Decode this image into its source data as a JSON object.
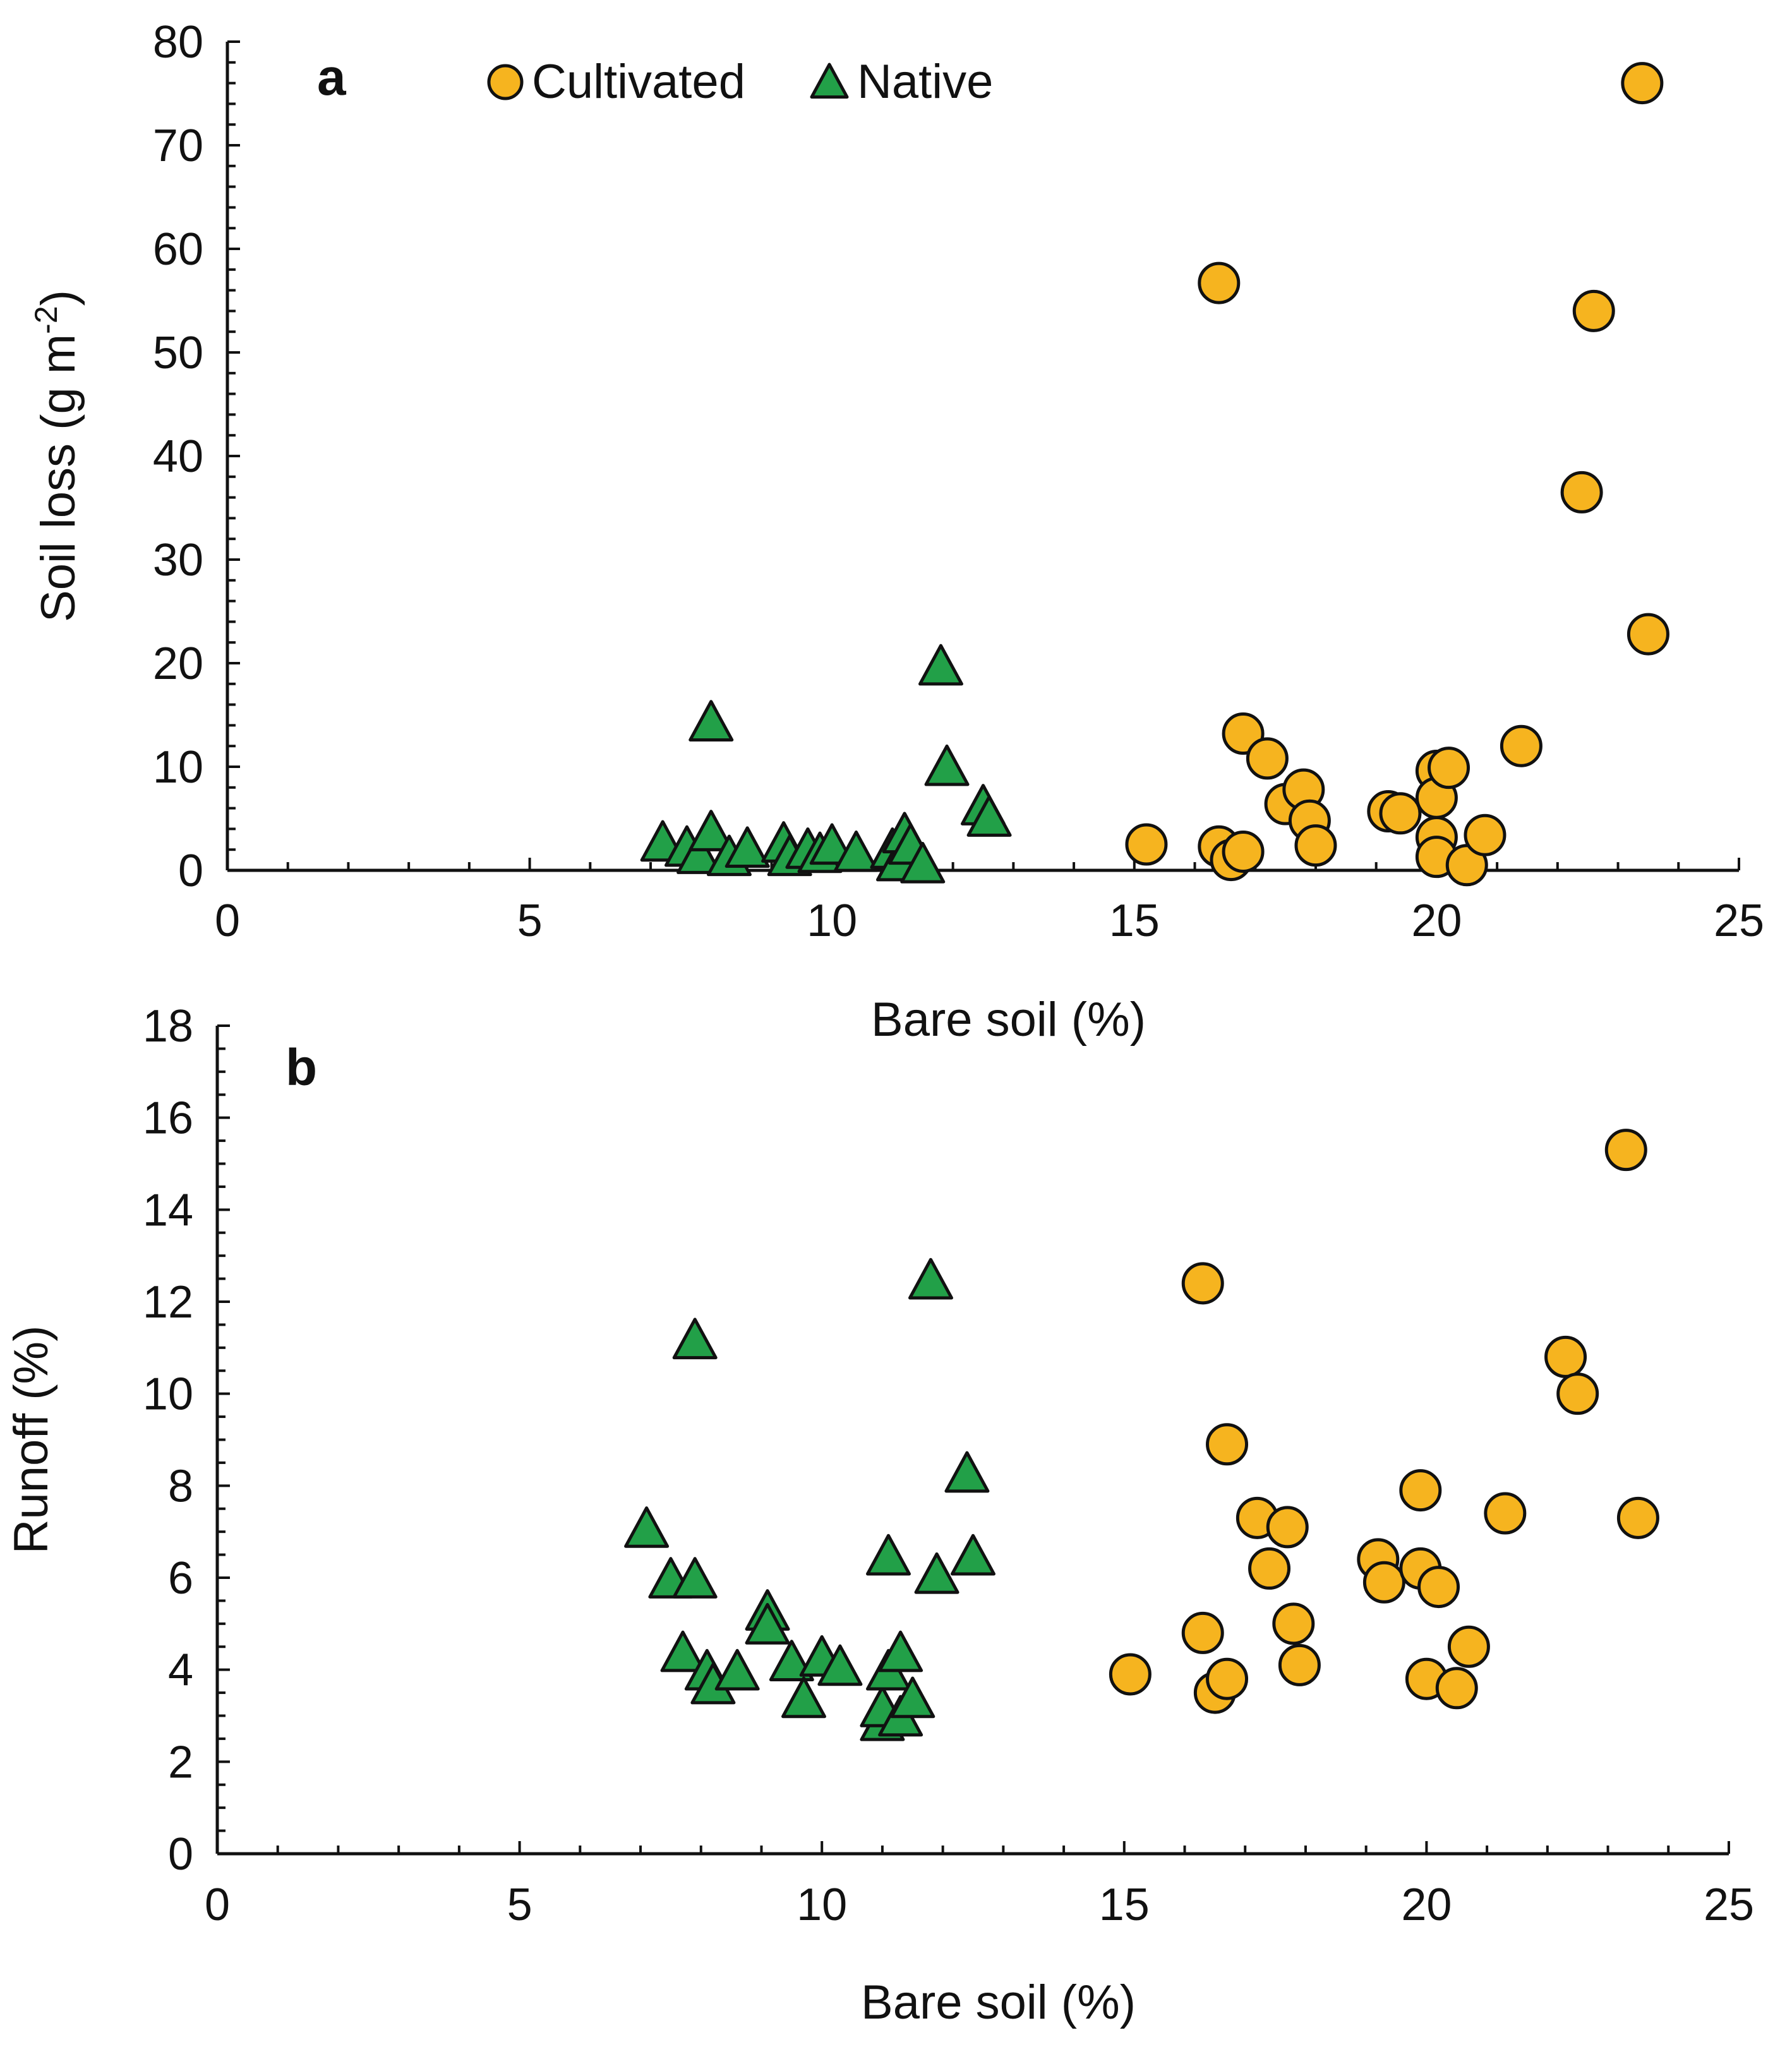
{
  "colors": {
    "cultivated": "#F6B41F",
    "native": "#22A048",
    "outline": "#111111"
  },
  "legend": {
    "cultivated": "Cultivated",
    "native": "Native",
    "placement": "top-left"
  },
  "chart_data": [
    {
      "type": "scatter",
      "panel_label": "a",
      "title": "",
      "xlabel": "Bare soil (%)",
      "ylabel_main": "Soil loss (g m",
      "ylabel_sup": "-2",
      "ylabel_tail": ")",
      "xlim": [
        0,
        25
      ],
      "ylim": [
        0,
        80
      ],
      "xticks": [
        "0",
        "5",
        "10",
        "15",
        "20",
        "25"
      ],
      "yticks": [
        "0",
        "10",
        "20",
        "30",
        "40",
        "50",
        "60",
        "70",
        "80"
      ],
      "x_minor_step": 1,
      "y_minor_step": 2,
      "series": [
        {
          "name": "Cultivated",
          "marker": "circle",
          "points": [
            [
              15.2,
              2.5
            ],
            [
              16.4,
              56.7
            ],
            [
              16.4,
              2.3
            ],
            [
              16.6,
              1.0
            ],
            [
              16.8,
              13.2
            ],
            [
              16.8,
              1.8
            ],
            [
              17.2,
              10.8
            ],
            [
              17.5,
              6.4
            ],
            [
              17.8,
              7.8
            ],
            [
              17.9,
              4.8
            ],
            [
              18.0,
              2.4
            ],
            [
              19.2,
              5.7
            ],
            [
              19.4,
              5.5
            ],
            [
              20.0,
              9.6
            ],
            [
              20.0,
              7.0
            ],
            [
              20.0,
              3.2
            ],
            [
              20.0,
              1.3
            ],
            [
              20.2,
              9.9
            ],
            [
              20.5,
              0.5
            ],
            [
              20.8,
              3.4
            ],
            [
              21.4,
              12.0
            ],
            [
              22.4,
              36.5
            ],
            [
              22.6,
              54.0
            ],
            [
              23.4,
              76.0
            ],
            [
              23.5,
              22.8
            ]
          ]
        },
        {
          "name": "Native",
          "marker": "triangle",
          "points": [
            [
              7.2,
              2.4
            ],
            [
              7.6,
              1.9
            ],
            [
              7.8,
              1.2
            ],
            [
              8.0,
              14.0
            ],
            [
              8.0,
              3.4
            ],
            [
              8.3,
              1.0
            ],
            [
              8.6,
              1.8
            ],
            [
              9.2,
              2.3
            ],
            [
              9.3,
              1.0
            ],
            [
              9.6,
              1.7
            ],
            [
              9.8,
              1.3
            ],
            [
              10.0,
              2.1
            ],
            [
              10.4,
              1.4
            ],
            [
              11.0,
              1.7
            ],
            [
              11.1,
              0.5
            ],
            [
              11.2,
              3.2
            ],
            [
              11.3,
              2.1
            ],
            [
              11.5,
              0.3
            ],
            [
              11.8,
              19.4
            ],
            [
              11.9,
              9.7
            ],
            [
              12.5,
              5.9
            ],
            [
              12.6,
              4.8
            ]
          ]
        }
      ]
    },
    {
      "type": "scatter",
      "panel_label": "b",
      "title": "",
      "xlabel": "Bare soil (%)",
      "ylabel": "Runoff (%)",
      "xlim": [
        0,
        25
      ],
      "ylim": [
        0,
        18
      ],
      "xticks": [
        "0",
        "5",
        "10",
        "15",
        "20",
        "25"
      ],
      "yticks": [
        "0",
        "2",
        "4",
        "6",
        "8",
        "10",
        "12",
        "14",
        "16",
        "18"
      ],
      "x_minor_step": 1,
      "y_minor_step": 0.5,
      "series": [
        {
          "name": "Cultivated",
          "marker": "circle",
          "points": [
            [
              15.1,
              3.9
            ],
            [
              16.3,
              12.4
            ],
            [
              16.3,
              4.8
            ],
            [
              16.5,
              3.5
            ],
            [
              16.7,
              8.9
            ],
            [
              16.7,
              3.8
            ],
            [
              17.2,
              7.3
            ],
            [
              17.4,
              6.2
            ],
            [
              17.7,
              7.1
            ],
            [
              17.8,
              5.0
            ],
            [
              17.9,
              4.1
            ],
            [
              19.2,
              6.4
            ],
            [
              19.3,
              5.9
            ],
            [
              19.9,
              7.9
            ],
            [
              19.9,
              6.2
            ],
            [
              20.0,
              3.8
            ],
            [
              20.2,
              5.8
            ],
            [
              20.5,
              3.6
            ],
            [
              20.7,
              4.5
            ],
            [
              21.3,
              7.4
            ],
            [
              22.3,
              10.8
            ],
            [
              22.5,
              10.0
            ],
            [
              23.3,
              15.3
            ],
            [
              23.5,
              7.3
            ]
          ]
        },
        {
          "name": "Native",
          "marker": "triangle",
          "points": [
            [
              7.1,
              7.0
            ],
            [
              7.5,
              5.9
            ],
            [
              7.7,
              4.3
            ],
            [
              7.9,
              11.1
            ],
            [
              7.9,
              5.9
            ],
            [
              8.1,
              3.9
            ],
            [
              8.2,
              3.6
            ],
            [
              8.6,
              3.9
            ],
            [
              9.1,
              5.2
            ],
            [
              9.1,
              4.9
            ],
            [
              9.5,
              4.1
            ],
            [
              9.7,
              3.3
            ],
            [
              10.0,
              4.2
            ],
            [
              10.3,
              4.0
            ],
            [
              11.0,
              2.8
            ],
            [
              11.0,
              3.1
            ],
            [
              11.1,
              6.4
            ],
            [
              11.1,
              3.9
            ],
            [
              11.3,
              4.3
            ],
            [
              11.3,
              2.9
            ],
            [
              11.5,
              3.3
            ],
            [
              11.8,
              12.4
            ],
            [
              11.9,
              6.0
            ],
            [
              12.4,
              8.2
            ],
            [
              12.5,
              6.4
            ]
          ]
        }
      ]
    }
  ]
}
